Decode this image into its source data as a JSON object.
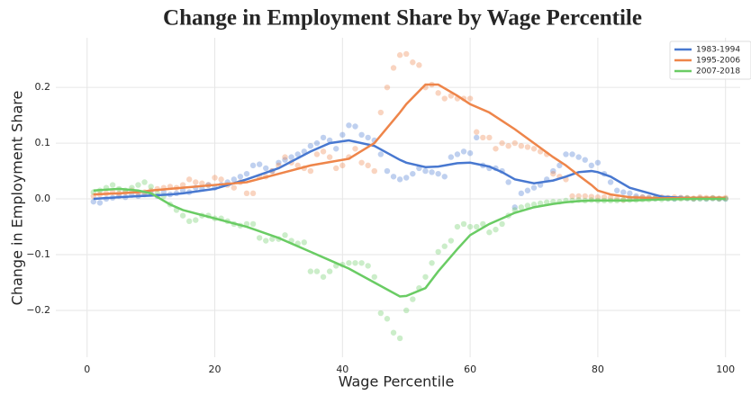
{
  "chart_data": {
    "type": "line",
    "title": "Change in Employment Share by Wage Percentile",
    "xlabel": "Wage Percentile",
    "ylabel": "Change in Employment Share",
    "xlim": [
      -4.9,
      102.3
    ],
    "ylim": [
      -0.284,
      0.289
    ],
    "xticks": [
      0,
      20,
      40,
      60,
      80,
      100
    ],
    "yticks": [
      {
        "value": -0.2,
        "label": "−0.2"
      },
      {
        "value": -0.1,
        "label": "−0.1"
      },
      {
        "value": 0,
        "label": "0.0"
      },
      0.1,
      0.2
    ],
    "grid": true,
    "legend": "upper right",
    "x": [
      1,
      5,
      8,
      10,
      13,
      15,
      20,
      25,
      30,
      35,
      38,
      41,
      45,
      49,
      50,
      53,
      55,
      58,
      60,
      63,
      65,
      67,
      70,
      73,
      75,
      77,
      79,
      80,
      82,
      85,
      90,
      95,
      100
    ],
    "scatter_x": [
      1,
      2,
      3,
      4,
      5,
      6,
      7,
      8,
      9,
      10,
      11,
      12,
      13,
      14,
      15,
      16,
      17,
      18,
      19,
      20,
      21,
      22,
      23,
      24,
      25,
      26,
      27,
      28,
      29,
      30,
      31,
      32,
      33,
      34,
      35,
      36,
      37,
      38,
      39,
      40,
      41,
      42,
      43,
      44,
      45,
      46,
      47,
      48,
      49,
      50,
      51,
      52,
      53,
      54,
      55,
      56,
      57,
      58,
      59,
      60,
      61,
      62,
      63,
      64,
      65,
      66,
      67,
      68,
      69,
      70,
      71,
      72,
      73,
      74,
      75,
      76,
      77,
      78,
      79,
      80,
      81,
      82,
      83,
      84,
      85,
      86,
      87,
      88,
      89,
      90,
      91,
      92,
      93,
      94,
      95,
      96,
      97,
      98,
      99,
      100
    ],
    "series": [
      {
        "name": "1983-1994",
        "color": "#4878d0",
        "values": [
          0.0,
          0.003,
          0.005,
          0.006,
          0.008,
          0.01,
          0.018,
          0.035,
          0.055,
          0.085,
          0.1,
          0.105,
          0.095,
          0.07,
          0.065,
          0.057,
          0.058,
          0.064,
          0.065,
          0.058,
          0.048,
          0.035,
          0.028,
          0.033,
          0.04,
          0.048,
          0.05,
          0.048,
          0.04,
          0.02,
          0.004,
          0.001,
          0.0
        ],
        "scatter_values": [
          -0.005,
          -0.007,
          0,
          0.002,
          0.005,
          0.003,
          0.007,
          0.005,
          0.008,
          0.01,
          0.005,
          0.012,
          0.008,
          0.01,
          0.015,
          0.012,
          0.02,
          0.018,
          0.025,
          0.02,
          0.025,
          0.03,
          0.035,
          0.04,
          0.045,
          0.06,
          0.062,
          0.055,
          0.05,
          0.065,
          0.07,
          0.075,
          0.08,
          0.085,
          0.095,
          0.1,
          0.11,
          0.105,
          0.09,
          0.115,
          0.132,
          0.13,
          0.115,
          0.11,
          0.105,
          0.08,
          0.05,
          0.04,
          0.035,
          0.038,
          0.045,
          0.055,
          0.05,
          0.048,
          0.045,
          0.04,
          0.075,
          0.08,
          0.085,
          0.082,
          0.11,
          0.06,
          0.055,
          0.055,
          0.05,
          0.03,
          -0.015,
          0.01,
          0.015,
          0.02,
          0.025,
          0.035,
          0.05,
          0.06,
          0.08,
          0.08,
          0.075,
          0.07,
          0.06,
          0.065,
          0.045,
          0.03,
          0.015,
          0.012,
          0.01,
          0.005,
          0.003,
          0.002,
          0.001,
          0.002,
          0.001,
          0,
          0.002,
          0.001,
          0,
          0.001,
          0,
          0.001,
          0,
          0
        ]
      },
      {
        "name": "1995-2006",
        "color": "#ee854a",
        "values": [
          0.008,
          0.01,
          0.012,
          0.015,
          0.018,
          0.02,
          0.025,
          0.03,
          0.045,
          0.06,
          0.066,
          0.072,
          0.1,
          0.155,
          0.17,
          0.205,
          0.205,
          0.185,
          0.17,
          0.155,
          0.14,
          0.125,
          0.1,
          0.075,
          0.06,
          0.042,
          0.025,
          0.015,
          0.008,
          0.003,
          0.001,
          0.002,
          0.002
        ],
        "scatter_values": [
          0.005,
          0.008,
          0.01,
          0.012,
          0.01,
          0.012,
          0.015,
          0.01,
          0.012,
          0.015,
          0.018,
          0.02,
          0.022,
          0.02,
          0.025,
          0.035,
          0.03,
          0.028,
          0.025,
          0.038,
          0.035,
          0.025,
          0.02,
          0.03,
          0.01,
          0.01,
          0.04,
          0.04,
          0.05,
          0.06,
          0.075,
          0.065,
          0.06,
          0.055,
          0.05,
          0.08,
          0.085,
          0.075,
          0.055,
          0.06,
          0.075,
          0.09,
          0.065,
          0.06,
          0.05,
          0.155,
          0.2,
          0.235,
          0.258,
          0.26,
          0.245,
          0.24,
          0.2,
          0.205,
          0.19,
          0.18,
          0.185,
          0.18,
          0.18,
          0.18,
          0.12,
          0.11,
          0.11,
          0.09,
          0.1,
          0.095,
          0.1,
          0.095,
          0.093,
          0.09,
          0.085,
          0.08,
          0.045,
          0.04,
          0.035,
          0.005,
          0.005,
          0.005,
          0.004,
          0.003,
          0.003,
          0.002,
          0,
          -0.002,
          0.001,
          0.002,
          0.003,
          0.002,
          0.002,
          0.003,
          0.002,
          0.003,
          0.002,
          0.002,
          0.001,
          0.003,
          0.002,
          0.002,
          0.001,
          0.002
        ]
      },
      {
        "name": "2007-2018",
        "color": "#6acc64",
        "values": [
          0.015,
          0.018,
          0.015,
          0.01,
          -0.01,
          -0.02,
          -0.035,
          -0.05,
          -0.07,
          -0.095,
          -0.11,
          -0.125,
          -0.15,
          -0.175,
          -0.174,
          -0.16,
          -0.13,
          -0.09,
          -0.065,
          -0.045,
          -0.035,
          -0.025,
          -0.015,
          -0.009,
          -0.006,
          -0.004,
          -0.003,
          -0.003,
          -0.003,
          -0.003,
          -0.001,
          0,
          0
        ],
        "scatter_values": [
          0.012,
          0.015,
          0.02,
          0.025,
          0.018,
          0.015,
          0.02,
          0.025,
          0.03,
          0.022,
          0.01,
          0.005,
          -0.01,
          -0.02,
          -0.03,
          -0.04,
          -0.038,
          -0.03,
          -0.03,
          -0.035,
          -0.035,
          -0.04,
          -0.045,
          -0.048,
          -0.045,
          -0.045,
          -0.07,
          -0.075,
          -0.072,
          -0.072,
          -0.065,
          -0.075,
          -0.08,
          -0.078,
          -0.13,
          -0.13,
          -0.14,
          -0.13,
          -0.12,
          -0.118,
          -0.115,
          -0.115,
          -0.115,
          -0.12,
          -0.14,
          -0.205,
          -0.215,
          -0.24,
          -0.25,
          -0.2,
          -0.18,
          -0.16,
          -0.14,
          -0.115,
          -0.095,
          -0.085,
          -0.075,
          -0.05,
          -0.045,
          -0.05,
          -0.05,
          -0.045,
          -0.06,
          -0.055,
          -0.045,
          -0.03,
          -0.02,
          -0.015,
          -0.012,
          -0.01,
          -0.008,
          -0.006,
          -0.005,
          -0.005,
          -0.003,
          -0.003,
          -0.002,
          -0.003,
          -0.002,
          -0.003,
          -0.003,
          -0.003,
          -0.003,
          -0.002,
          -0.002,
          -0.002,
          -0.001,
          -0.001,
          0,
          -0.001,
          0,
          0,
          0,
          0.001,
          0,
          0,
          0,
          0.001,
          0,
          0
        ]
      }
    ]
  }
}
